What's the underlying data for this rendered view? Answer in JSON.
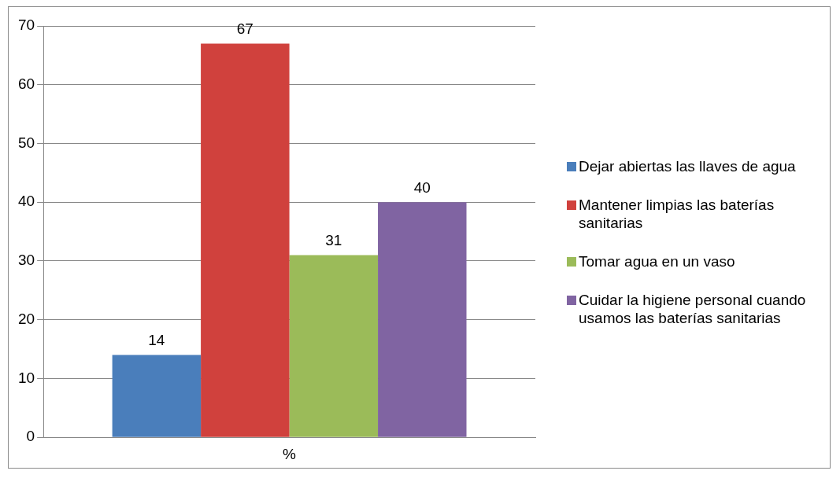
{
  "chart_data": {
    "type": "bar",
    "categories": [
      "%"
    ],
    "series": [
      {
        "name": "Dejar abiertas las llaves de agua",
        "color": "#4a7ebb",
        "values": [
          14
        ]
      },
      {
        "name": "Mantener limpias las baterías sanitarias",
        "color": "#d0413d",
        "values": [
          67
        ]
      },
      {
        "name": "Tomar agua en un vaso",
        "color": "#9bbb59",
        "values": [
          31
        ]
      },
      {
        "name": "Cuidar la higiene personal cuando usamos las baterías sanitarias",
        "color": "#8064a2",
        "values": [
          40
        ]
      }
    ],
    "ylim": [
      0,
      70
    ],
    "yticks": [
      0,
      10,
      20,
      30,
      40,
      50,
      60,
      70
    ],
    "grid": "y",
    "legend": "right",
    "data_labels": true
  }
}
